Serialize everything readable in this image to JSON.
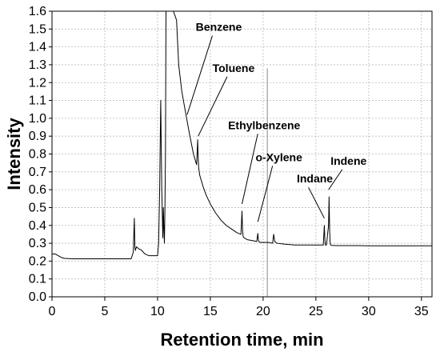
{
  "chart_data": {
    "type": "line",
    "xlabel": "Retention time, min",
    "ylabel": "Intensity",
    "xlim": [
      0,
      36
    ],
    "ylim": [
      0,
      1.6
    ],
    "x_ticks": [
      0,
      5,
      10,
      15,
      20,
      25,
      30,
      35
    ],
    "x_tick_labels": [
      "0",
      "5",
      "10",
      "15",
      "20",
      "25",
      "30",
      "35"
    ],
    "y_ticks": [
      0.0,
      0.1,
      0.2,
      0.3,
      0.4,
      0.5,
      0.6,
      0.7,
      0.8,
      0.9,
      1.0,
      1.1,
      1.2,
      1.3,
      1.4,
      1.5,
      1.6
    ],
    "y_tick_labels": [
      "0.0",
      "0.1",
      "0.2",
      "0.3",
      "0.4",
      "0.5",
      "0.6",
      "0.7",
      "0.8",
      "0.9",
      "1.0",
      "1.1",
      "1.2",
      "1.3",
      "1.4",
      "1.5",
      "1.6"
    ],
    "grid": true,
    "line_color": "#000000",
    "series": [
      {
        "x": [
          0,
          0.3,
          0.6,
          0.9,
          1.2,
          2,
          4,
          6,
          7.5,
          7.7,
          7.8,
          7.85,
          7.9,
          8.0,
          8.2,
          8.5,
          8.8,
          9.2,
          9.6,
          10.0,
          10.1,
          10.2,
          10.3,
          10.4,
          10.5,
          10.55,
          10.6,
          10.65,
          10.7,
          10.75,
          10.8,
          10.9,
          11.0,
          11.1,
          11.2,
          11.3,
          11.5,
          11.8,
          12.0,
          12.3,
          12.6,
          13.0,
          13.4,
          13.7,
          13.8,
          13.85,
          13.9,
          14.0,
          14.3,
          14.6,
          15.0,
          15.5,
          16.0,
          16.5,
          17.0,
          17.5,
          17.9,
          18.0,
          18.05,
          18.1,
          18.2,
          18.5,
          19.0,
          19.4,
          19.5,
          19.55,
          19.6,
          19.7,
          20.0,
          20.5,
          20.9,
          21.0,
          21.1,
          21.3,
          22,
          23,
          24,
          25,
          25.7,
          25.8,
          25.85,
          25.9,
          26.0,
          26.2,
          26.25,
          26.3,
          26.35,
          26.4,
          26.5,
          27,
          28,
          29,
          30,
          31,
          32,
          33,
          34,
          35,
          36
        ],
        "y": [
          0.24,
          0.24,
          0.23,
          0.22,
          0.215,
          0.213,
          0.213,
          0.213,
          0.213,
          0.25,
          0.44,
          0.28,
          0.26,
          0.28,
          0.27,
          0.26,
          0.24,
          0.23,
          0.23,
          0.23,
          0.3,
          0.6,
          1.1,
          0.6,
          0.33,
          0.5,
          0.38,
          0.3,
          0.5,
          0.8,
          1.6,
          1.6,
          1.6,
          1.6,
          1.6,
          1.6,
          1.6,
          1.55,
          1.3,
          1.15,
          1.05,
          0.92,
          0.8,
          0.74,
          0.88,
          0.78,
          0.72,
          0.68,
          0.62,
          0.57,
          0.52,
          0.47,
          0.43,
          0.4,
          0.38,
          0.36,
          0.35,
          0.48,
          0.38,
          0.34,
          0.33,
          0.32,
          0.315,
          0.31,
          0.355,
          0.32,
          0.31,
          0.305,
          0.305,
          0.305,
          0.3,
          0.35,
          0.31,
          0.3,
          0.295,
          0.29,
          0.29,
          0.29,
          0.29,
          0.4,
          0.32,
          0.29,
          0.29,
          0.4,
          0.56,
          0.38,
          0.3,
          0.29,
          0.288,
          0.287,
          0.287,
          0.287,
          0.286,
          0.286,
          0.286,
          0.286,
          0.286,
          0.286,
          0.286
        ]
      }
    ],
    "annotations": [
      {
        "text": "Benzene",
        "x": 15.8,
        "y": 1.49,
        "ax": 12.8,
        "ay": 1.02
      },
      {
        "text": "Toluene",
        "x": 17.2,
        "y": 1.26,
        "ax": 13.85,
        "ay": 0.9
      },
      {
        "text": "Ethylbenzene",
        "x": 20.1,
        "y": 0.94,
        "ax": 18.0,
        "ay": 0.52
      },
      {
        "text": "o-Xylene",
        "x": 21.5,
        "y": 0.76,
        "ax": 19.5,
        "ay": 0.42
      },
      {
        "text": "Indane",
        "x": 24.9,
        "y": 0.64,
        "ax": 25.8,
        "ay": 0.44
      },
      {
        "text": "Indene",
        "x": 28.1,
        "y": 0.74,
        "ax": 26.2,
        "ay": 0.6
      }
    ],
    "reference_line_x": 20.4
  }
}
